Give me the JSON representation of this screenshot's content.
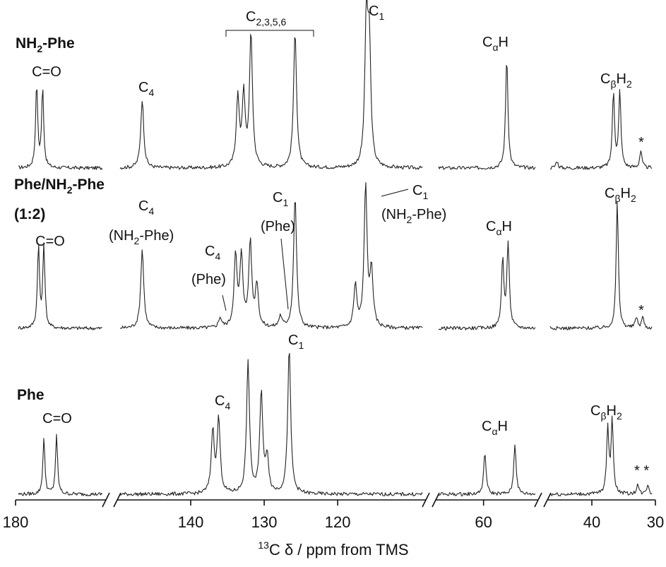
{
  "chart_data": {
    "type": "line",
    "xlabel": "¹³C δ / ppm from TMS",
    "x_axis": {
      "reversed": true,
      "broken": true,
      "segments": [
        {
          "from": 180,
          "to": 165
        },
        {
          "from": 150,
          "to": 108
        },
        {
          "from": 67,
          "to": 52
        },
        {
          "from": 47,
          "to": 30
        }
      ],
      "ticks": [
        180,
        140,
        130,
        120,
        60,
        40,
        30
      ],
      "tick_labels": [
        "180",
        "140",
        "130",
        "120",
        "60",
        "40",
        "30"
      ]
    },
    "series": [
      {
        "name": "NH₂-Phe",
        "peaks": [
          {
            "ppm": 176.5,
            "height": 0.58
          },
          {
            "ppm": 175.5,
            "height": 0.55
          },
          {
            "ppm": 146.6,
            "height": 0.48
          },
          {
            "ppm": 133.6,
            "height": 0.48
          },
          {
            "ppm": 132.8,
            "height": 0.49
          },
          {
            "ppm": 131.8,
            "height": 0.93
          },
          {
            "ppm": 125.8,
            "height": 0.96
          },
          {
            "ppm": 116.1,
            "height": 1.0
          },
          {
            "ppm": 115.7,
            "height": 0.82
          },
          {
            "ppm": 56.6,
            "height": 0.78
          },
          {
            "ppm": 45.5,
            "height": 0.05
          },
          {
            "ppm": 36.6,
            "height": 0.53
          },
          {
            "ppm": 35.6,
            "height": 0.53
          },
          {
            "ppm": 32.3,
            "height": 0.12
          }
        ]
      },
      {
        "name": "Phe/NH₂-Phe (1:2)",
        "peaks": [
          {
            "ppm": 176.2,
            "height": 0.58
          },
          {
            "ppm": 175.3,
            "height": 0.58
          },
          {
            "ppm": 146.6,
            "height": 0.56
          },
          {
            "ppm": 136.0,
            "height": 0.07
          },
          {
            "ppm": 133.9,
            "height": 0.5
          },
          {
            "ppm": 133.1,
            "height": 0.5
          },
          {
            "ppm": 131.9,
            "height": 0.6
          },
          {
            "ppm": 131.0,
            "height": 0.3
          },
          {
            "ppm": 127.8,
            "height": 0.08
          },
          {
            "ppm": 125.8,
            "height": 0.93
          },
          {
            "ppm": 117.6,
            "height": 0.3
          },
          {
            "ppm": 116.2,
            "height": 1.0
          },
          {
            "ppm": 115.4,
            "height": 0.4
          },
          {
            "ppm": 57.2,
            "height": 0.48
          },
          {
            "ppm": 56.4,
            "height": 0.6
          },
          {
            "ppm": 47.0,
            "height": 0.05
          },
          {
            "ppm": 36.0,
            "height": 0.9
          },
          {
            "ppm": 33.0,
            "height": 0.08
          },
          {
            "ppm": 32.0,
            "height": 0.08
          }
        ]
      },
      {
        "name": "Phe",
        "peaks": [
          {
            "ppm": 175.3,
            "height": 0.38
          },
          {
            "ppm": 173.2,
            "height": 0.4
          },
          {
            "ppm": 137.0,
            "height": 0.43
          },
          {
            "ppm": 136.2,
            "height": 0.51
          },
          {
            "ppm": 132.2,
            "height": 0.9
          },
          {
            "ppm": 130.4,
            "height": 0.7
          },
          {
            "ppm": 129.6,
            "height": 0.25
          },
          {
            "ppm": 126.6,
            "height": 1.0
          },
          {
            "ppm": 59.8,
            "height": 0.29
          },
          {
            "ppm": 55.4,
            "height": 0.35
          },
          {
            "ppm": 37.5,
            "height": 0.45
          },
          {
            "ppm": 36.8,
            "height": 0.51
          },
          {
            "ppm": 32.8,
            "height": 0.07
          },
          {
            "ppm": 31.2,
            "height": 0.07
          }
        ]
      }
    ],
    "annotations": {
      "nh2phe": {
        "name_main": "NH",
        "name_sub": "2",
        "name_rest": "-Phe",
        "co": "C=O",
        "c4_main": "C",
        "c4_sub": "4",
        "c2356_main": "C",
        "c2356_sub": "2,3,5,6",
        "c1_main": "C",
        "c1_sub": "1",
        "cah_main": "C",
        "cah_sub": "α",
        "cah_rest": "H",
        "cbh2_main": "C",
        "cbh2_sub": "β",
        "cbh2_mid": "H",
        "cbh2_sub2": "2",
        "star": "*"
      },
      "mix": {
        "name_line1_a": "Phe/NH",
        "name_line1_sub": "2",
        "name_line1_b": "-Phe",
        "name_line2": "(1:2)",
        "co": "C=O",
        "c4nh_main": "C",
        "c4nh_sub": "4",
        "c4nh_paren_a": "(NH",
        "c4nh_paren_sub": "2",
        "c4nh_paren_b": "-Phe)",
        "c4phe_main": "C",
        "c4phe_sub": "4",
        "c4phe_paren": "(Phe)",
        "c1phe_main": "C",
        "c1phe_sub": "1",
        "c1phe_paren": "(Phe)",
        "c1nh_main": "C",
        "c1nh_sub": "1",
        "c1nh_paren_a": "(NH",
        "c1nh_paren_sub": "2",
        "c1nh_paren_b": "-Phe)",
        "cah_main": "C",
        "cah_sub": "α",
        "cah_rest": "H",
        "cbh2_main": "C",
        "cbh2_sub": "β",
        "cbh2_mid": "H",
        "cbh2_sub2": "2",
        "star": "*"
      },
      "phe": {
        "name": "Phe",
        "co": "C=O",
        "c4_main": "C",
        "c4_sub": "4",
        "c1_main": "C",
        "c1_sub": "1",
        "cah_main": "C",
        "cah_sub": "α",
        "cah_rest": "H",
        "cbh2_main": "C",
        "cbh2_sub": "β",
        "cbh2_mid": "H",
        "cbh2_sub2": "2",
        "stars": "* *"
      }
    },
    "xlabel_parts": {
      "sup": "13",
      "rest": "C δ / ppm from TMS"
    }
  }
}
